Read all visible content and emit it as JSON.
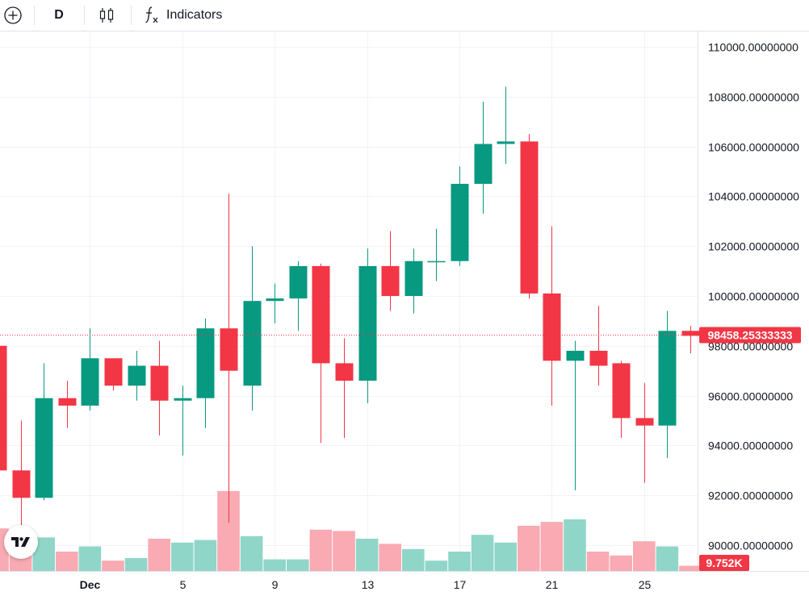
{
  "toolbar": {
    "add_icon": "plus-circle-icon",
    "interval": "D",
    "chart_type_icon": "candles-icon",
    "indicators_icon": "fx-icon",
    "indicators_label": "Indicators"
  },
  "colors": {
    "up": "#089981",
    "down": "#f23645",
    "up_volume": "#8fd6c9",
    "down_volume": "#f9aab2",
    "grid": "#f0f3fa",
    "price_line": "#f23645"
  },
  "chart_data": {
    "type": "candlestick",
    "title": "",
    "ylim": [
      89000,
      111000
    ],
    "y_ticks": [
      "110000.00000000",
      "108000.00000000",
      "106000.00000000",
      "104000.00000000",
      "102000.00000000",
      "100000.00000000",
      "98000.00000000",
      "96000.00000000",
      "94000.00000000",
      "92000.00000000",
      "90000.00000000"
    ],
    "x_ticks": [
      {
        "index": 4,
        "label": "Dec"
      },
      {
        "index": 8,
        "label": "5"
      },
      {
        "index": 12,
        "label": "9"
      },
      {
        "index": 16,
        "label": "13"
      },
      {
        "index": 20,
        "label": "17"
      },
      {
        "index": 24,
        "label": "21"
      },
      {
        "index": 28,
        "label": "25"
      }
    ],
    "last_price": "98458.25333333",
    "last_price_value": 98458,
    "last_volume": "9.752K",
    "candles": [
      {
        "o": 98000,
        "h": 98300,
        "l": 92800,
        "c": 93000
      },
      {
        "o": 93000,
        "h": 95000,
        "l": 90700,
        "c": 91900
      },
      {
        "o": 91900,
        "h": 97300,
        "l": 91800,
        "c": 95900
      },
      {
        "o": 95900,
        "h": 96600,
        "l": 94700,
        "c": 95600
      },
      {
        "o": 95600,
        "h": 98700,
        "l": 95400,
        "c": 97500
      },
      {
        "o": 97500,
        "h": 97500,
        "l": 96200,
        "c": 96400
      },
      {
        "o": 96400,
        "h": 97800,
        "l": 95800,
        "c": 97200
      },
      {
        "o": 97200,
        "h": 98200,
        "l": 94400,
        "c": 95800
      },
      {
        "o": 95800,
        "h": 96400,
        "l": 93600,
        "c": 95900
      },
      {
        "o": 95900,
        "h": 99100,
        "l": 94700,
        "c": 98700
      },
      {
        "o": 98700,
        "h": 104100,
        "l": 90900,
        "c": 97000
      },
      {
        "o": 96400,
        "h": 102000,
        "l": 95400,
        "c": 99800
      },
      {
        "o": 99800,
        "h": 100500,
        "l": 98900,
        "c": 99900
      },
      {
        "o": 99900,
        "h": 101400,
        "l": 98600,
        "c": 101200
      },
      {
        "o": 101200,
        "h": 101300,
        "l": 94100,
        "c": 97300
      },
      {
        "o": 97300,
        "h": 98300,
        "l": 94300,
        "c": 96600
      },
      {
        "o": 96600,
        "h": 101900,
        "l": 95700,
        "c": 101200
      },
      {
        "o": 101200,
        "h": 102600,
        "l": 99400,
        "c": 100000
      },
      {
        "o": 100000,
        "h": 101900,
        "l": 99300,
        "c": 101400
      },
      {
        "o": 101400,
        "h": 102700,
        "l": 100600,
        "c": 101400
      },
      {
        "o": 101400,
        "h": 105200,
        "l": 101200,
        "c": 104500
      },
      {
        "o": 104500,
        "h": 107800,
        "l": 103300,
        "c": 106100
      },
      {
        "o": 106100,
        "h": 108400,
        "l": 105300,
        "c": 106200
      },
      {
        "o": 106200,
        "h": 106500,
        "l": 99900,
        "c": 100100
      },
      {
        "o": 100100,
        "h": 102800,
        "l": 95600,
        "c": 97400
      },
      {
        "o": 97400,
        "h": 98200,
        "l": 92200,
        "c": 97800
      },
      {
        "o": 97800,
        "h": 99600,
        "l": 96400,
        "c": 97200
      },
      {
        "o": 97300,
        "h": 97400,
        "l": 94300,
        "c": 95100
      },
      {
        "o": 95100,
        "h": 96500,
        "l": 92500,
        "c": 94800
      },
      {
        "o": 94800,
        "h": 99400,
        "l": 93500,
        "c": 98600
      },
      {
        "o": 98600,
        "h": 98800,
        "l": 97700,
        "c": 98400
      }
    ],
    "volume": {
      "max": 1000,
      "values": [
        330,
        310,
        260,
        150,
        190,
        80,
        100,
        250,
        220,
        240,
        620,
        270,
        90,
        90,
        320,
        310,
        250,
        210,
        170,
        80,
        150,
        280,
        220,
        350,
        380,
        400,
        150,
        120,
        230,
        190,
        40
      ]
    }
  }
}
